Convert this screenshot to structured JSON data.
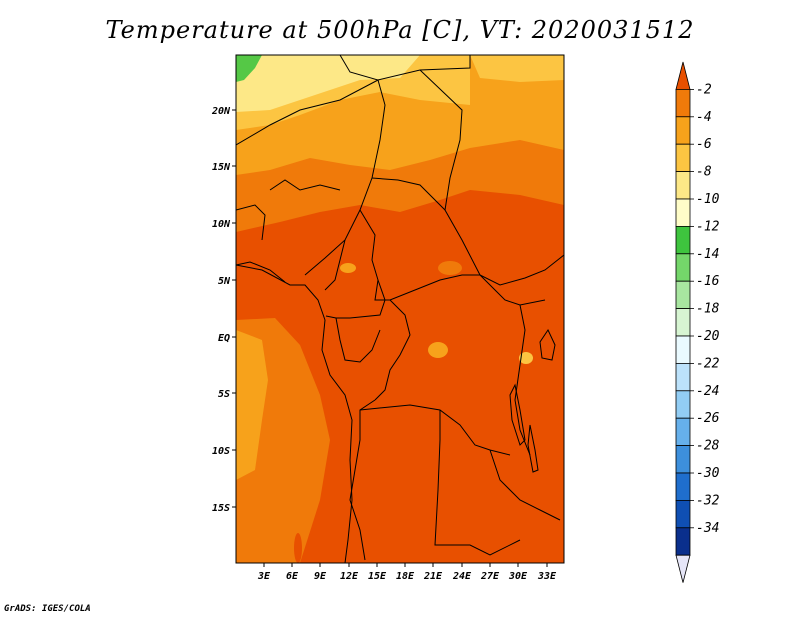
{
  "title": "Temperature at 500hPa [C], VT: 2020031512",
  "footer": "GrADS: IGES/COLA",
  "map": {
    "lat_labels": [
      "20N",
      "15N",
      "10N",
      "5N",
      "EQ",
      "5S",
      "10S",
      "15S"
    ],
    "lon_labels": [
      "3E",
      "6E",
      "9E",
      "12E",
      "15E",
      "18E",
      "21E",
      "24E",
      "27E",
      "30E",
      "33E"
    ],
    "dominant_colors": {
      "very_warm": "#e85000",
      "warm": "#f07a0a",
      "mid": "#f7a21b",
      "light": "#fcc542",
      "pale": "#fde887",
      "green": "#55c846"
    }
  },
  "colorbar": {
    "labels": [
      "-2",
      "-4",
      "-6",
      "-8",
      "-10",
      "-12",
      "-14",
      "-16",
      "-18",
      "-20",
      "-22",
      "-24",
      "-26",
      "-28",
      "-30",
      "-32",
      "-34"
    ],
    "colors": [
      "#e85000",
      "#f07a0a",
      "#f7a21b",
      "#fcc542",
      "#fde887",
      "#fffdc8",
      "#3ec43e",
      "#74d66a",
      "#a8e6a0",
      "#d7f5d2",
      "#eafaff",
      "#bce2fb",
      "#92cdf4",
      "#66b0eb",
      "#3d8fdc",
      "#1f6ecd",
      "#0f4fb3",
      "#0a2f8c",
      "#e6e6f8"
    ]
  }
}
